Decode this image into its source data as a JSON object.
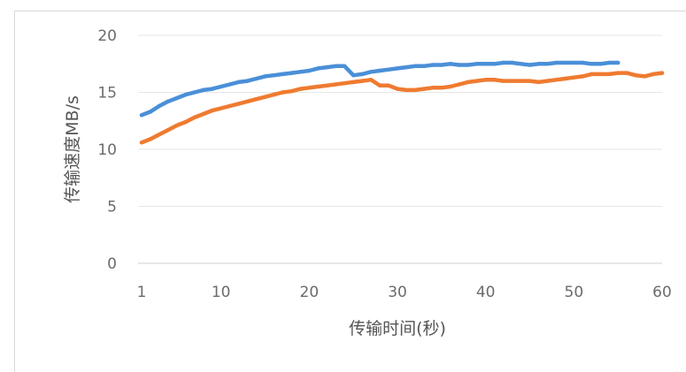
{
  "chart_data": {
    "type": "line",
    "title": "",
    "xlabel": "传输时间(秒)",
    "ylabel": "传输速度MB/s",
    "xlim": [
      1,
      60
    ],
    "ylim": [
      0,
      20
    ],
    "x_ticks": [
      "1",
      "10",
      "20",
      "30",
      "40",
      "50",
      "60"
    ],
    "y_ticks": [
      "0",
      "5",
      "10",
      "15",
      "20"
    ],
    "grid": true,
    "legend": "none",
    "series": [
      {
        "color": "#4a8fd8",
        "x": [
          1,
          2,
          3,
          4,
          5,
          6,
          7,
          8,
          9,
          10,
          11,
          12,
          13,
          14,
          15,
          16,
          17,
          18,
          19,
          20,
          21,
          22,
          23,
          24,
          25,
          26,
          27,
          28,
          29,
          30,
          31,
          32,
          33,
          34,
          35,
          36,
          37,
          38,
          39,
          40,
          41,
          42,
          43,
          44,
          45,
          46,
          47,
          48,
          49,
          50,
          51,
          52,
          53,
          54,
          55
        ],
        "values": [
          13.0,
          13.3,
          13.8,
          14.2,
          14.5,
          14.8,
          15.0,
          15.2,
          15.3,
          15.5,
          15.7,
          15.9,
          16.0,
          16.2,
          16.4,
          16.5,
          16.6,
          16.7,
          16.8,
          16.9,
          17.1,
          17.2,
          17.3,
          17.3,
          16.5,
          16.6,
          16.8,
          16.9,
          17.0,
          17.1,
          17.2,
          17.3,
          17.3,
          17.4,
          17.4,
          17.5,
          17.4,
          17.4,
          17.5,
          17.5,
          17.5,
          17.6,
          17.6,
          17.5,
          17.4,
          17.5,
          17.5,
          17.6,
          17.6,
          17.6,
          17.6,
          17.5,
          17.5,
          17.6,
          17.6
        ]
      },
      {
        "color": "#ef7b30",
        "x": [
          1,
          2,
          3,
          4,
          5,
          6,
          7,
          8,
          9,
          10,
          11,
          12,
          13,
          14,
          15,
          16,
          17,
          18,
          19,
          20,
          21,
          22,
          23,
          24,
          25,
          26,
          27,
          28,
          29,
          30,
          31,
          32,
          33,
          34,
          35,
          36,
          37,
          38,
          39,
          40,
          41,
          42,
          43,
          44,
          45,
          46,
          47,
          48,
          49,
          50,
          51,
          52,
          53,
          54,
          55,
          56,
          57,
          58,
          59,
          60
        ],
        "values": [
          10.6,
          10.9,
          11.3,
          11.7,
          12.1,
          12.4,
          12.8,
          13.1,
          13.4,
          13.6,
          13.8,
          14.0,
          14.2,
          14.4,
          14.6,
          14.8,
          15.0,
          15.1,
          15.3,
          15.4,
          15.5,
          15.6,
          15.7,
          15.8,
          15.9,
          16.0,
          16.1,
          15.6,
          15.6,
          15.3,
          15.2,
          15.2,
          15.3,
          15.4,
          15.4,
          15.5,
          15.7,
          15.9,
          16.0,
          16.1,
          16.1,
          16.0,
          16.0,
          16.0,
          16.0,
          15.9,
          16.0,
          16.1,
          16.2,
          16.3,
          16.4,
          16.6,
          16.6,
          16.6,
          16.7,
          16.7,
          16.5,
          16.4,
          16.6,
          16.7
        ]
      }
    ]
  }
}
